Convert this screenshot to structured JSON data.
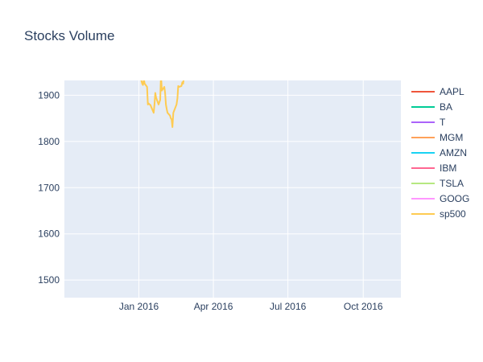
{
  "chart_data": {
    "type": "line",
    "title": "Stocks Volume",
    "xlabel": "",
    "ylabel": "",
    "x_axis": {
      "type": "date",
      "range": [
        "2015-10-02",
        "2016-11-16"
      ],
      "ticks": [
        {
          "value": "2016-01-01",
          "label": "Jan 2016"
        },
        {
          "value": "2016-04-01",
          "label": "Apr 2016"
        },
        {
          "value": "2016-07-01",
          "label": "Jul 2016"
        },
        {
          "value": "2016-10-01",
          "label": "Oct 2016"
        }
      ]
    },
    "y_axis": {
      "range": [
        1462,
        1932
      ],
      "ticks": [
        1500,
        1600,
        1700,
        1800,
        1900
      ]
    },
    "grid": true,
    "legend_position": "right",
    "plot_background": "#e5ecf6",
    "series": [
      {
        "name": "AAPL",
        "color": "#EF553B",
        "x": [],
        "y": []
      },
      {
        "name": "BA",
        "color": "#00CC96",
        "x": [],
        "y": []
      },
      {
        "name": "T",
        "color": "#AB63FA",
        "x": [],
        "y": []
      },
      {
        "name": "MGM",
        "color": "#FFA15A",
        "x": [],
        "y": []
      },
      {
        "name": "AMZN",
        "color": "#19D3F3",
        "x": [],
        "y": []
      },
      {
        "name": "IBM",
        "color": "#FF6692",
        "x": [],
        "y": []
      },
      {
        "name": "TSLA",
        "color": "#B6E880",
        "x": [],
        "y": []
      },
      {
        "name": "GOOG",
        "color": "#FF97FF",
        "x": [],
        "y": []
      },
      {
        "name": "sp500",
        "color": "#FECB52",
        "x": [
          "2015-12-31",
          "2016-01-04",
          "2016-01-05",
          "2016-01-06",
          "2016-01-07",
          "2016-01-08",
          "2016-01-11",
          "2016-01-12",
          "2016-01-13",
          "2016-01-14",
          "2016-01-15",
          "2016-01-19",
          "2016-01-20",
          "2016-01-21",
          "2016-01-22",
          "2016-01-25",
          "2016-01-26",
          "2016-01-27",
          "2016-01-28",
          "2016-01-29",
          "2016-02-01",
          "2016-02-02",
          "2016-02-03",
          "2016-02-04",
          "2016-02-05",
          "2016-02-08",
          "2016-02-09",
          "2016-02-10",
          "2016-02-11",
          "2016-02-12",
          "2016-02-16",
          "2016-02-17",
          "2016-02-18",
          "2016-02-19",
          "2016-02-22",
          "2016-02-23",
          "2016-02-24",
          "2016-02-25",
          "2016-02-26"
        ],
        "y": [
          1945,
          1932,
          1925,
          1922,
          1935,
          1925,
          1918,
          1880,
          1882,
          1880,
          1879,
          1862,
          1880,
          1905,
          1895,
          1880,
          1885,
          1890,
          1945,
          1910,
          1918,
          1905,
          1880,
          1870,
          1862,
          1856,
          1850,
          1848,
          1831,
          1862,
          1880,
          1893,
          1920,
          1918,
          1920,
          1928,
          1925,
          1940,
          1948
        ]
      }
    ]
  }
}
